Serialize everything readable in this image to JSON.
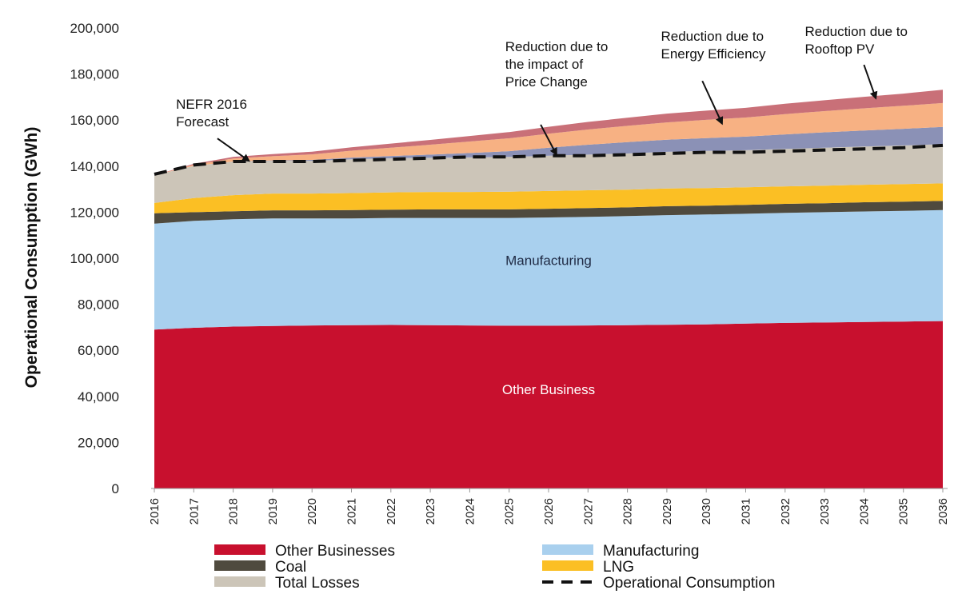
{
  "chart_data": {
    "type": "area",
    "stacked": true,
    "ylabel": "Operational Consumption (GWh)",
    "xlabel": "",
    "ylim": [
      0,
      200000
    ],
    "y_ticks": [
      "0",
      "20,000",
      "40,000",
      "60,000",
      "80,000",
      "100,000",
      "120,000",
      "140,000",
      "160,000",
      "180,000",
      "200,000"
    ],
    "categories": [
      "2016",
      "2017",
      "2018",
      "2019",
      "2020",
      "2021",
      "2022",
      "2023",
      "2024",
      "2025",
      "2026",
      "2027",
      "2028",
      "2029",
      "2030",
      "2031",
      "2032",
      "2033",
      "2034",
      "2035",
      "2036"
    ],
    "series": [
      {
        "name": "Other Businesses",
        "key": "other_businesses",
        "color": "#c8102e",
        "values": [
          69000,
          69800,
          70300,
          70600,
          70800,
          70900,
          71000,
          70900,
          70800,
          70700,
          70700,
          70800,
          70900,
          71100,
          71300,
          71600,
          71900,
          72100,
          72300,
          72500,
          72700
        ]
      },
      {
        "name": "Manufacturing",
        "key": "manufacturing",
        "color": "#a9d0ee",
        "values": [
          46000,
          46400,
          46600,
          46700,
          46500,
          46400,
          46500,
          46600,
          46700,
          46800,
          47000,
          47200,
          47400,
          47600,
          47700,
          47700,
          47800,
          47900,
          48000,
          48100,
          48200
        ]
      },
      {
        "name": "Coal",
        "key": "coal",
        "color": "#4f4a3e",
        "values": [
          4500,
          3800,
          3500,
          3500,
          3500,
          3600,
          3600,
          3700,
          3700,
          3700,
          3800,
          3800,
          3800,
          3900,
          3800,
          3900,
          3900,
          3900,
          4000,
          4000,
          4000
        ]
      },
      {
        "name": "LNG",
        "key": "lng",
        "color": "#fbbf24",
        "values": [
          4500,
          6100,
          7000,
          7300,
          7300,
          7400,
          7500,
          7600,
          7600,
          7700,
          7700,
          7700,
          7700,
          7700,
          7700,
          7600,
          7600,
          7600,
          7600,
          7600,
          7600
        ]
      },
      {
        "name": "Total Losses",
        "key": "total_losses",
        "color": "#ccc5b8",
        "values": [
          12000,
          14000,
          14600,
          14200,
          14200,
          14700,
          14800,
          14800,
          15000,
          15100,
          15300,
          15500,
          15700,
          15900,
          16100,
          16100,
          16300,
          16500,
          16600,
          16800,
          17000
        ]
      },
      {
        "name": "",
        "key": "price_change_reduction",
        "color": "#8b91b6",
        "values": [
          0,
          0,
          0,
          200,
          400,
          700,
          1000,
          1400,
          1900,
          2500,
          3500,
          4300,
          4900,
          5300,
          5600,
          5900,
          6300,
          6700,
          7000,
          7200,
          7500
        ]
      },
      {
        "name": "",
        "key": "energy_efficiency_reduction",
        "color": "#f7b183",
        "values": [
          0,
          500,
          1300,
          1800,
          2400,
          3000,
          3600,
          4300,
          5000,
          5600,
          6100,
          6600,
          7100,
          7500,
          7900,
          8300,
          8800,
          9200,
          9600,
          10000,
          10400
        ]
      },
      {
        "name": "",
        "key": "rooftop_pv_reduction",
        "color": "#c97078",
        "values": [
          0,
          400,
          700,
          900,
          1200,
          1500,
          1800,
          2100,
          2400,
          2700,
          3000,
          3300,
          3500,
          3800,
          4000,
          4200,
          4500,
          4700,
          5000,
          5300,
          5800
        ]
      }
    ],
    "line_series": {
      "name": "Operational Consumption",
      "color": "#111111",
      "dash": true,
      "values": [
        136500,
        140500,
        142000,
        142000,
        142000,
        142500,
        143000,
        143500,
        144000,
        144000,
        144500,
        144500,
        145000,
        145500,
        146000,
        146000,
        146500,
        147000,
        147500,
        148000,
        149000
      ]
    },
    "inline_labels": [
      {
        "key": "manufacturing",
        "text": "Manufacturing",
        "x": "2026",
        "y": 97000,
        "color": "#1f2a44"
      },
      {
        "key": "other_business",
        "text": "Other Business",
        "x": "2026",
        "y": 41000,
        "color": "#ffffff"
      }
    ],
    "annotations": [
      {
        "key": "nefr",
        "lines": [
          "NEFR 2016",
          "Forecast"
        ],
        "text_x": "2016.55",
        "text_y": 165000,
        "arrow_from": [
          "2017.6",
          152000
        ],
        "arrow_to": [
          "2018.4",
          142300
        ]
      },
      {
        "key": "price",
        "lines": [
          "Reduction due to",
          "the impact of",
          "Price Change"
        ],
        "text_x": "2024.9",
        "text_y": 190000,
        "arrow_from": [
          "2025.8",
          158000
        ],
        "arrow_to": [
          "2026.2",
          145000
        ]
      },
      {
        "key": "efficiency",
        "lines": [
          "Reduction due to",
          "Energy Efficiency"
        ],
        "text_x": "2028.85",
        "text_y": 194500,
        "arrow_from": [
          "2029.9",
          177000
        ],
        "arrow_to": [
          "2030.4",
          158500
        ]
      },
      {
        "key": "rooftop",
        "lines": [
          "Reduction due to",
          "Rooftop PV"
        ],
        "text_x": "2032.5",
        "text_y": 196500,
        "arrow_from": [
          "2034.0",
          184000
        ],
        "arrow_to": [
          "2034.3",
          169500
        ]
      }
    ],
    "legend": {
      "position": "bottom",
      "items": [
        {
          "label": "Other Businesses",
          "color": "#c8102e",
          "kind": "swatch"
        },
        {
          "label": "Manufacturing",
          "color": "#a9d0ee",
          "kind": "swatch"
        },
        {
          "label": "Coal",
          "color": "#4f4a3e",
          "kind": "swatch"
        },
        {
          "label": "LNG",
          "color": "#fbbf24",
          "kind": "swatch"
        },
        {
          "label": "Total Losses",
          "color": "#ccc5b8",
          "kind": "swatch"
        },
        {
          "label": "Operational Consumption",
          "color": "#111111",
          "kind": "dash"
        }
      ]
    },
    "grid": false
  }
}
